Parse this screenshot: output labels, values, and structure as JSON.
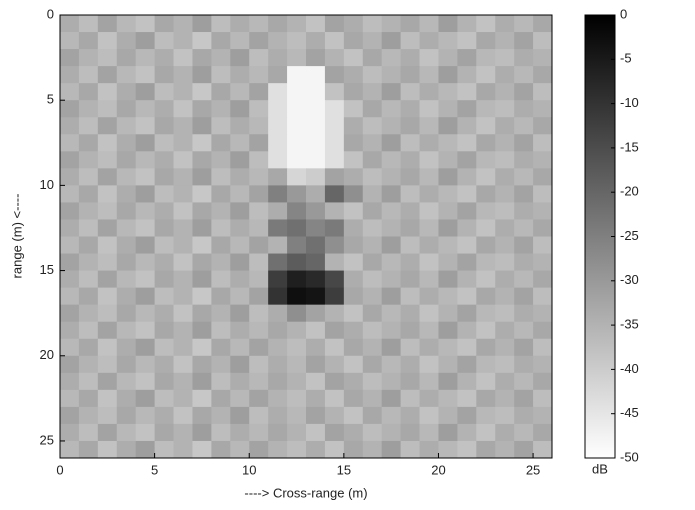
{
  "chart_data": {
    "type": "heatmap",
    "xlabel": "----> Cross-range (m)",
    "ylabel": "range (m) <----",
    "xlim": [
      0,
      26
    ],
    "ylim": [
      26,
      0
    ],
    "xticks": [
      0,
      5,
      10,
      15,
      20,
      25
    ],
    "yticks": [
      0,
      5,
      10,
      15,
      20,
      25
    ],
    "clim": [
      -50,
      0
    ],
    "color_low": "#ffffff",
    "color_high": "#000000",
    "cticks": [
      0,
      -5,
      -10,
      -15,
      -20,
      -25,
      -30,
      -35,
      -40,
      -45,
      -50
    ],
    "colorbar_label": "dB",
    "z": [
      [
        -34,
        -37,
        -32,
        -36,
        -38,
        -33,
        -35,
        -31,
        -37,
        -34,
        -36,
        -33,
        -35,
        -38,
        -32,
        -34,
        -37,
        -35,
        -33,
        -36,
        -31,
        -35,
        -38,
        -34,
        -36,
        -33
      ],
      [
        -36,
        -33,
        -38,
        -34,
        -31,
        -37,
        -35,
        -39,
        -33,
        -36,
        -32,
        -35,
        -37,
        -34,
        -38,
        -33,
        -35,
        -31,
        -37,
        -34,
        -36,
        -38,
        -33,
        -35,
        -32,
        -37
      ],
      [
        -32,
        -35,
        -37,
        -33,
        -36,
        -34,
        -38,
        -33,
        -35,
        -31,
        -37,
        -34,
        -36,
        -32,
        -35,
        -38,
        -33,
        -36,
        -34,
        -38,
        -35,
        -32,
        -36,
        -37,
        -34,
        -35
      ],
      [
        -34,
        -37,
        -32,
        -36,
        -38,
        -33,
        -35,
        -31,
        -37,
        -34,
        -36,
        -33,
        -48,
        -48,
        -32,
        -34,
        -37,
        -35,
        -33,
        -36,
        -31,
        -35,
        -38,
        -34,
        -36,
        -33
      ],
      [
        -36,
        -33,
        -38,
        -34,
        -31,
        -37,
        -35,
        -39,
        -33,
        -36,
        -32,
        -44,
        -48,
        -48,
        -38,
        -33,
        -35,
        -31,
        -37,
        -34,
        -36,
        -38,
        -33,
        -35,
        -32,
        -37
      ],
      [
        -32,
        -35,
        -37,
        -33,
        -36,
        -34,
        -38,
        -33,
        -35,
        -31,
        -37,
        -44,
        -48,
        -48,
        -44,
        -38,
        -33,
        -36,
        -34,
        -38,
        -35,
        -32,
        -36,
        -37,
        -34,
        -35
      ],
      [
        -34,
        -37,
        -32,
        -36,
        -38,
        -33,
        -35,
        -31,
        -37,
        -34,
        -36,
        -44,
        -48,
        -48,
        -44,
        -34,
        -37,
        -35,
        -33,
        -36,
        -31,
        -35,
        -38,
        -34,
        -36,
        -33
      ],
      [
        -36,
        -33,
        -38,
        -34,
        -31,
        -37,
        -35,
        -39,
        -33,
        -36,
        -32,
        -44,
        -48,
        -48,
        -44,
        -33,
        -35,
        -31,
        -37,
        -34,
        -36,
        -38,
        -33,
        -35,
        -32,
        -37
      ],
      [
        -32,
        -35,
        -37,
        -33,
        -36,
        -34,
        -38,
        -33,
        -35,
        -31,
        -37,
        -44,
        -48,
        -48,
        -44,
        -38,
        -33,
        -36,
        -34,
        -38,
        -35,
        -32,
        -36,
        -37,
        -34,
        -35
      ],
      [
        -34,
        -37,
        -32,
        -36,
        -38,
        -33,
        -35,
        -31,
        -37,
        -34,
        -36,
        -33,
        -42,
        -40,
        -32,
        -34,
        -37,
        -35,
        -33,
        -36,
        -31,
        -35,
        -38,
        -34,
        -36,
        -33
      ],
      [
        -36,
        -33,
        -38,
        -34,
        -31,
        -37,
        -35,
        -39,
        -33,
        -36,
        -32,
        -25,
        -30,
        -34,
        -20,
        -28,
        -35,
        -31,
        -37,
        -34,
        -36,
        -38,
        -33,
        -35,
        -32,
        -37
      ],
      [
        -32,
        -35,
        -37,
        -33,
        -36,
        -34,
        -38,
        -33,
        -35,
        -31,
        -37,
        -34,
        -26,
        -30,
        -35,
        -38,
        -33,
        -36,
        -34,
        -38,
        -35,
        -32,
        -36,
        -37,
        -34,
        -35
      ],
      [
        -34,
        -37,
        -32,
        -36,
        -38,
        -33,
        -35,
        -31,
        -37,
        -34,
        -36,
        -24,
        -22,
        -26,
        -24,
        -34,
        -37,
        -35,
        -33,
        -36,
        -31,
        -35,
        -38,
        -34,
        -36,
        -33
      ],
      [
        -36,
        -33,
        -38,
        -34,
        -31,
        -37,
        -35,
        -39,
        -33,
        -36,
        -32,
        -35,
        -25,
        -22,
        -28,
        -33,
        -35,
        -31,
        -37,
        -34,
        -36,
        -38,
        -33,
        -35,
        -32,
        -37
      ],
      [
        -32,
        -35,
        -37,
        -33,
        -36,
        -34,
        -38,
        -33,
        -35,
        -31,
        -37,
        -22,
        -18,
        -20,
        -35,
        -38,
        -33,
        -36,
        -34,
        -38,
        -35,
        -32,
        -36,
        -37,
        -34,
        -35
      ],
      [
        -34,
        -37,
        -32,
        -36,
        -38,
        -33,
        -35,
        -31,
        -37,
        -34,
        -36,
        -12,
        -6,
        -8,
        -14,
        -34,
        -37,
        -35,
        -33,
        -36,
        -31,
        -35,
        -38,
        -34,
        -36,
        -33
      ],
      [
        -36,
        -33,
        -38,
        -34,
        -31,
        -37,
        -35,
        -39,
        -33,
        -36,
        -32,
        -10,
        -3,
        -4,
        -12,
        -33,
        -35,
        -31,
        -37,
        -34,
        -36,
        -38,
        -33,
        -35,
        -32,
        -37
      ],
      [
        -32,
        -35,
        -37,
        -33,
        -36,
        -34,
        -38,
        -33,
        -35,
        -31,
        -37,
        -34,
        -28,
        -32,
        -35,
        -38,
        -33,
        -36,
        -34,
        -38,
        -35,
        -32,
        -36,
        -37,
        -34,
        -35
      ],
      [
        -34,
        -37,
        -32,
        -36,
        -38,
        -33,
        -35,
        -31,
        -37,
        -34,
        -36,
        -33,
        -35,
        -38,
        -32,
        -34,
        -37,
        -35,
        -33,
        -36,
        -31,
        -35,
        -38,
        -34,
        -36,
        -33
      ],
      [
        -36,
        -33,
        -38,
        -34,
        -31,
        -37,
        -35,
        -39,
        -33,
        -36,
        -32,
        -35,
        -37,
        -34,
        -38,
        -33,
        -35,
        -31,
        -37,
        -34,
        -36,
        -38,
        -33,
        -35,
        -32,
        -37
      ],
      [
        -32,
        -35,
        -37,
        -33,
        -36,
        -34,
        -38,
        -33,
        -35,
        -31,
        -37,
        -34,
        -36,
        -32,
        -35,
        -38,
        -33,
        -36,
        -34,
        -38,
        -35,
        -32,
        -36,
        -37,
        -34,
        -35
      ],
      [
        -34,
        -37,
        -32,
        -36,
        -38,
        -33,
        -35,
        -31,
        -37,
        -34,
        -36,
        -33,
        -35,
        -38,
        -32,
        -34,
        -37,
        -35,
        -33,
        -36,
        -31,
        -35,
        -38,
        -34,
        -36,
        -33
      ],
      [
        -36,
        -33,
        -38,
        -34,
        -31,
        -37,
        -35,
        -39,
        -33,
        -36,
        -32,
        -35,
        -37,
        -34,
        -38,
        -33,
        -35,
        -31,
        -37,
        -34,
        -36,
        -38,
        -33,
        -35,
        -32,
        -37
      ],
      [
        -32,
        -35,
        -37,
        -33,
        -36,
        -34,
        -38,
        -33,
        -35,
        -31,
        -37,
        -34,
        -36,
        -32,
        -35,
        -38,
        -33,
        -36,
        -34,
        -38,
        -35,
        -32,
        -36,
        -37,
        -34,
        -35
      ],
      [
        -34,
        -37,
        -32,
        -36,
        -38,
        -33,
        -35,
        -31,
        -37,
        -34,
        -36,
        -33,
        -35,
        -38,
        -32,
        -34,
        -37,
        -35,
        -33,
        -36,
        -31,
        -35,
        -38,
        -34,
        -36,
        -33
      ],
      [
        -36,
        -33,
        -38,
        -34,
        -31,
        -37,
        -35,
        -39,
        -33,
        -36,
        -32,
        -35,
        -37,
        -34,
        -38,
        -33,
        -35,
        -31,
        -37,
        -34,
        -36,
        -38,
        -33,
        -35,
        -32,
        -37
      ]
    ]
  }
}
